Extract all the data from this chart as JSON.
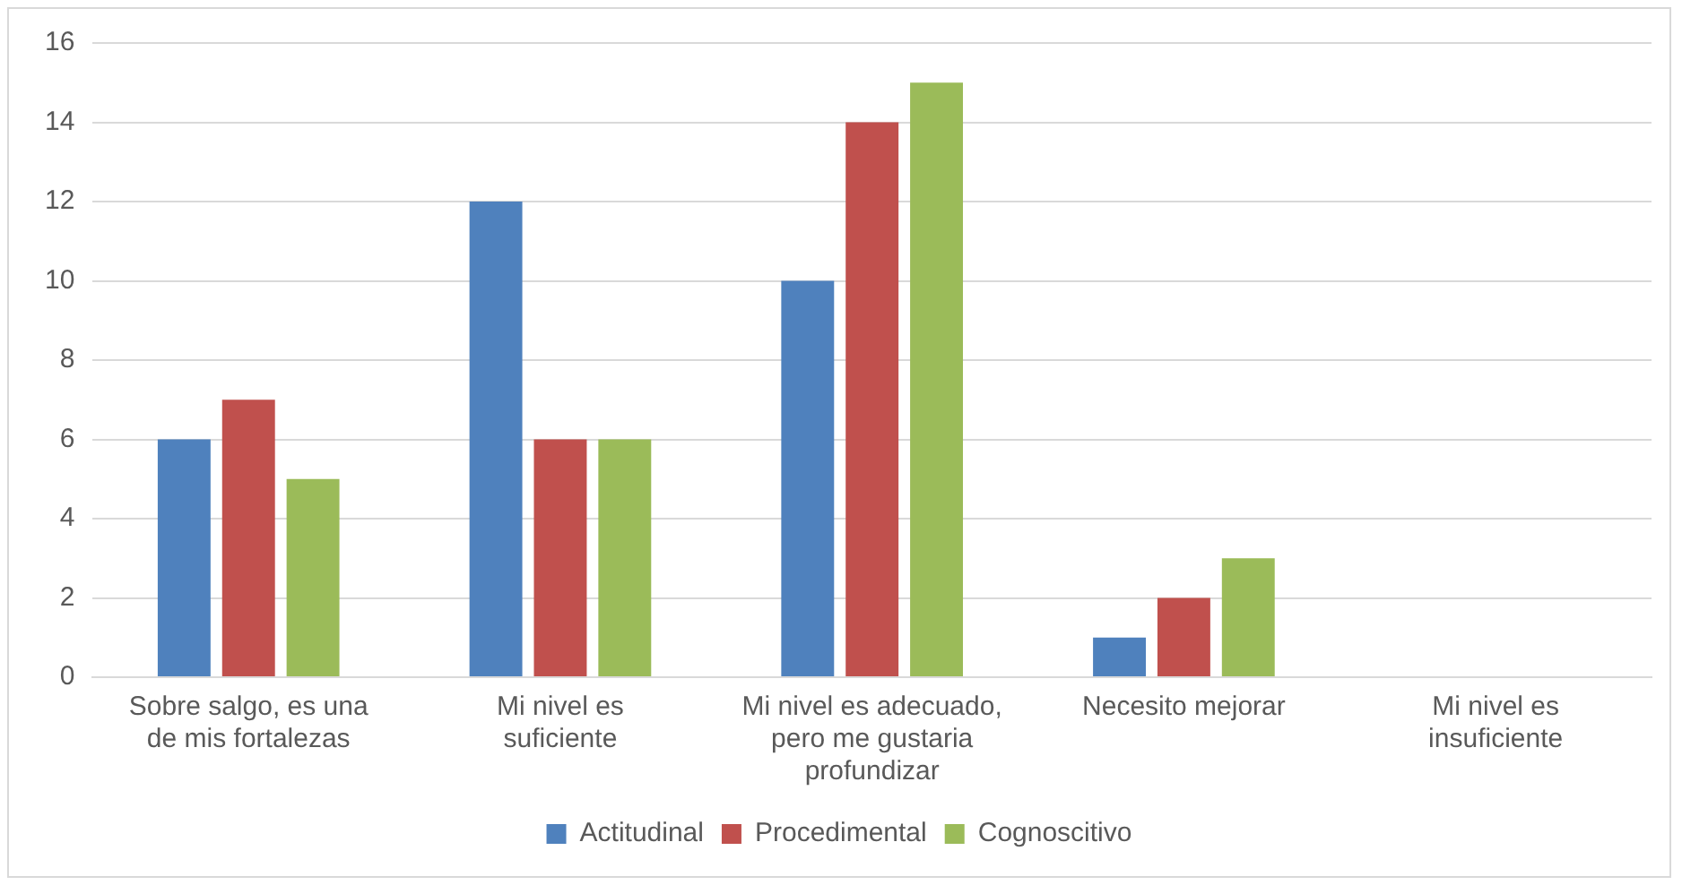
{
  "chart_data": {
    "type": "bar",
    "categories": [
      "Sobre salgo, es una de mis fortalezas",
      "Mi nivel es suficiente",
      "Mi nivel es adecuado, pero me gustaria profundizar",
      "Necesito mejorar",
      "Mi nivel es insuficiente"
    ],
    "series": [
      {
        "name": "Actitudinal",
        "color": "#4f81bd",
        "values": [
          6,
          12,
          10,
          1,
          0
        ]
      },
      {
        "name": "Procedimental",
        "color": "#c0504d",
        "values": [
          7,
          6,
          14,
          2,
          0
        ]
      },
      {
        "name": "Cognoscitivo",
        "color": "#9bbb59",
        "values": [
          5,
          6,
          15,
          3,
          0
        ]
      }
    ],
    "ylim": [
      0,
      16
    ],
    "yticks": [
      0,
      2,
      4,
      6,
      8,
      10,
      12,
      14,
      16
    ],
    "grid": "y",
    "legend": "bottom"
  }
}
